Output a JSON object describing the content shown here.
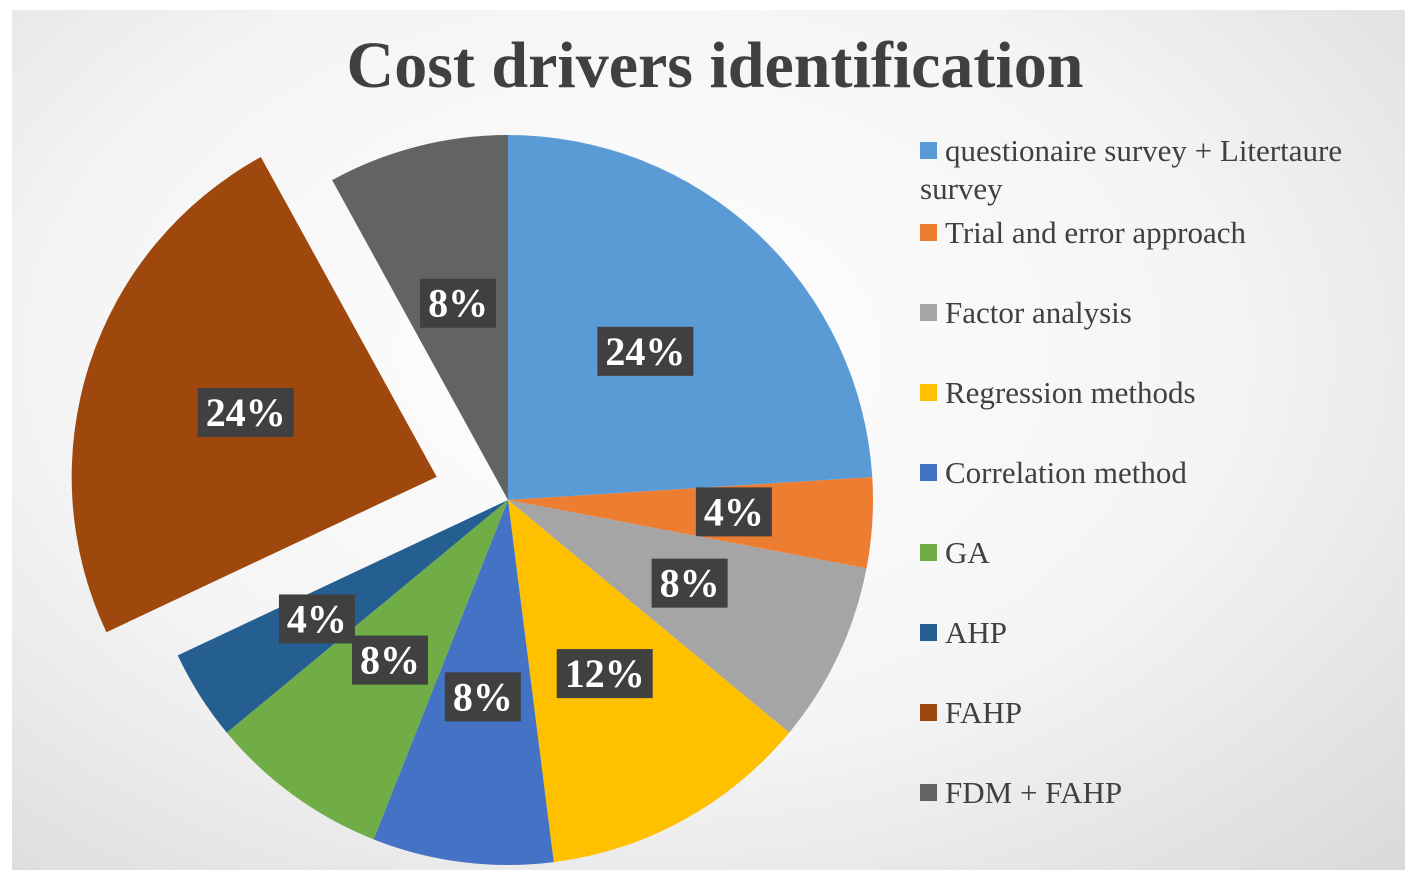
{
  "chart_data": {
    "type": "pie",
    "title": "Cost drivers identification",
    "categories": [
      "questionaire survey +  Litertaure survey",
      "Trial and error approach",
      "Factor analysis",
      "Regression methods",
      "Correlation method",
      "GA",
      "AHP",
      "FAHP",
      "FDM + FAHP"
    ],
    "values": [
      24,
      4,
      8,
      12,
      8,
      8,
      4,
      24,
      8
    ],
    "value_labels": [
      "24%",
      "4%",
      "8%",
      "12%",
      "8%",
      "8%",
      "4%",
      "24%",
      "8%"
    ],
    "colors": [
      "#5b9bd5",
      "#ed7d31",
      "#a5a5a5",
      "#ffc000",
      "#4472c4",
      "#70ad47",
      "#255e91",
      "#9e480e",
      "#636363"
    ],
    "explode": "FAHP",
    "legend": "right"
  }
}
